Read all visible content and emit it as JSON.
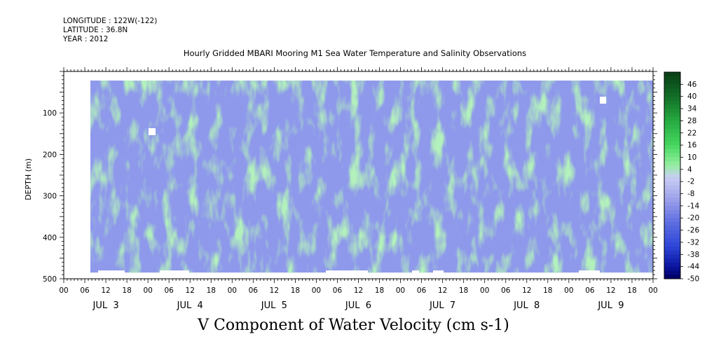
{
  "header": {
    "longitude": "LONGITUDE : 122W(-122)",
    "latitude": "LATITUDE : 36.8N",
    "year": "YEAR : 2012"
  },
  "chart_data": {
    "type": "heatmap",
    "title": "Hourly Gridded MBARI Mooring M1 Sea Water Temperature and Salinity Observations",
    "xlabel": "V Component of Water Velocity (cm s-1)",
    "ylabel": "DEPTH (m)",
    "ylim": [
      500,
      0
    ],
    "y_ticks": [
      100,
      200,
      300,
      400,
      500
    ],
    "x_hour_ticks": [
      "00",
      "06",
      "12",
      "18",
      "00",
      "06",
      "12",
      "18",
      "00",
      "06",
      "12",
      "18",
      "00",
      "06",
      "12",
      "18",
      "00",
      "06",
      "12",
      "18",
      "00",
      "06",
      "12",
      "18",
      "00",
      "06",
      "12",
      "18",
      "00"
    ],
    "x_day_labels": [
      "JUL  3",
      "JUL  4",
      "JUL  5",
      "JUL  6",
      "JUL  7",
      "JUL  8",
      "JUL  9"
    ],
    "colorbar_labels": [
      "46",
      "40",
      "34",
      "28",
      "22",
      "16",
      "10",
      "4",
      "-2",
      "-8",
      "-14",
      "-20",
      "-26",
      "-32",
      "-38",
      "-44",
      "-50"
    ],
    "colorbar_range": [
      -50,
      52
    ],
    "colors": {
      "positive_strong": "#0a4d1a",
      "positive_mid": "#2fc050",
      "positive_light": "#9df0a8",
      "negative_light": "#b4b8f0",
      "negative_mid": "#3c52d8",
      "negative_strong": "#00006c"
    }
  }
}
